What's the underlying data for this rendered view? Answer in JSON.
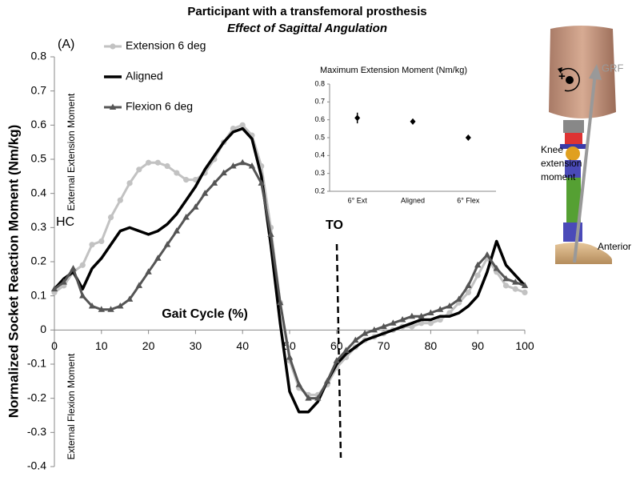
{
  "title": "Participant with a transfemoral prosthesis",
  "subtitle": "Effect of Sagittal Angulation",
  "chart_data": [
    {
      "type": "line",
      "y_label": "Normalized Socket Reaction Moment (Nm/kg)",
      "x_label": "Gait Cycle (%)",
      "annotations": [
        "(A)",
        "HC",
        "TO",
        "External Extension Moment",
        "External Flexion Moment"
      ],
      "x": [
        0,
        2,
        4,
        6,
        8,
        10,
        12,
        14,
        16,
        18,
        20,
        22,
        24,
        26,
        28,
        30,
        32,
        34,
        36,
        38,
        40,
        42,
        44,
        46,
        48,
        50,
        52,
        54,
        56,
        58,
        60,
        62,
        64,
        66,
        68,
        70,
        72,
        74,
        76,
        78,
        80,
        82,
        84,
        86,
        88,
        90,
        92,
        94,
        96,
        98,
        100
      ],
      "xlim": [
        0,
        100
      ],
      "xticks": [
        0,
        10,
        20,
        30,
        40,
        50,
        60,
        70,
        80,
        90,
        100
      ],
      "ylim": [
        -0.4,
        0.8
      ],
      "yticks": [
        0.8,
        0.7,
        0.6,
        0.5,
        0.4,
        0.3,
        0.2,
        0.1,
        0,
        -0.1,
        -0.2,
        -0.3,
        -0.4
      ],
      "series": [
        {
          "name": "Extension 6 deg",
          "color": "#c2c2c2",
          "marker": "circle",
          "values": [
            0.11,
            0.13,
            0.17,
            0.19,
            0.25,
            0.26,
            0.33,
            0.38,
            0.43,
            0.47,
            0.49,
            0.49,
            0.48,
            0.46,
            0.44,
            0.44,
            0.46,
            0.5,
            0.55,
            0.59,
            0.6,
            0.57,
            0.48,
            0.3,
            0.08,
            -0.09,
            -0.17,
            -0.19,
            -0.19,
            -0.16,
            -0.11,
            -0.08,
            -0.05,
            -0.03,
            -0.02,
            -0.01,
            0,
            0.01,
            0.01,
            0.02,
            0.02,
            0.03,
            0.05,
            0.08,
            0.11,
            0.16,
            0.21,
            0.17,
            0.13,
            0.12,
            0.11
          ]
        },
        {
          "name": "Aligned",
          "color": "#000000",
          "marker": "none",
          "values": [
            0.12,
            0.15,
            0.17,
            0.12,
            0.18,
            0.21,
            0.25,
            0.29,
            0.3,
            0.29,
            0.28,
            0.29,
            0.31,
            0.34,
            0.38,
            0.42,
            0.47,
            0.51,
            0.55,
            0.58,
            0.59,
            0.56,
            0.45,
            0.25,
            0.02,
            -0.18,
            -0.24,
            -0.24,
            -0.21,
            -0.15,
            -0.1,
            -0.07,
            -0.05,
            -0.03,
            -0.02,
            -0.01,
            0,
            0.01,
            0.02,
            0.03,
            0.03,
            0.04,
            0.04,
            0.05,
            0.07,
            0.1,
            0.17,
            0.26,
            0.19,
            0.16,
            0.13
          ]
        },
        {
          "name": "Flexion 6 deg",
          "color": "#555555",
          "marker": "triangle",
          "values": [
            0.12,
            0.14,
            0.18,
            0.1,
            0.07,
            0.06,
            0.06,
            0.07,
            0.09,
            0.13,
            0.17,
            0.21,
            0.25,
            0.29,
            0.33,
            0.36,
            0.4,
            0.43,
            0.46,
            0.48,
            0.49,
            0.48,
            0.43,
            0.28,
            0.08,
            -0.08,
            -0.16,
            -0.2,
            -0.2,
            -0.15,
            -0.09,
            -0.06,
            -0.03,
            -0.01,
            0,
            0.01,
            0.02,
            0.03,
            0.04,
            0.04,
            0.05,
            0.06,
            0.07,
            0.09,
            0.13,
            0.19,
            0.22,
            0.18,
            0.15,
            0.14,
            0.13
          ]
        }
      ]
    },
    {
      "type": "scatter",
      "title": "Maximum Extension Moment (Nm/kg)",
      "categories": [
        "6° Ext",
        "Aligned",
        "6° Flex"
      ],
      "values": [
        0.61,
        0.59,
        0.5
      ],
      "errors": [
        0.03,
        0.015,
        0.01
      ],
      "color": "#000000",
      "ylim": [
        0.2,
        0.8
      ],
      "yticks": [
        0.8,
        0.7,
        0.6,
        0.5,
        0.4,
        0.3,
        0.2
      ]
    }
  ],
  "figure_labels": [
    "GRF",
    "+",
    "Knee",
    "extension",
    "moment",
    "Anterior"
  ]
}
